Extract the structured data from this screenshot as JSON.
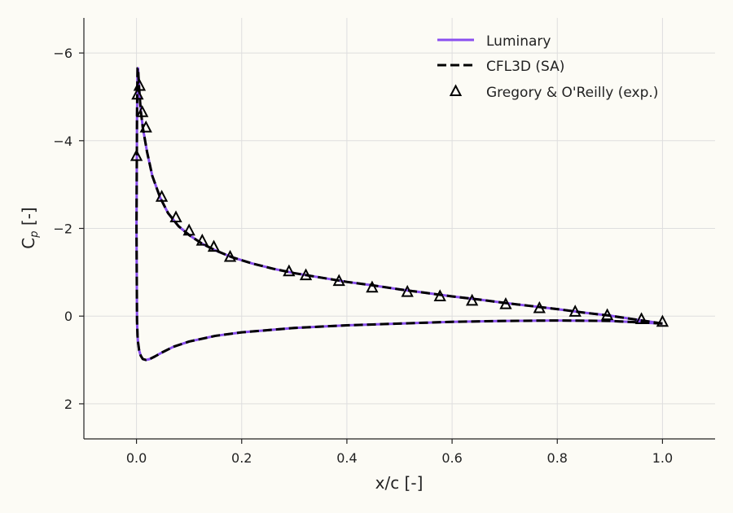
{
  "chart_data": {
    "type": "line",
    "xlabel": "x/c [-]",
    "ylabel": {
      "main": "C",
      "sub": "p",
      "suffix": " [-]"
    },
    "xlim": [
      -0.1,
      1.1
    ],
    "ylim": [
      2.8,
      -6.8
    ],
    "y_inverted": true,
    "xticks": [
      0.0,
      0.2,
      0.4,
      0.6,
      0.8,
      1.0
    ],
    "xtick_labels": [
      "0.0",
      "0.2",
      "0.4",
      "0.6",
      "0.8",
      "1.0"
    ],
    "yticks": [
      -6,
      -4,
      -2,
      0,
      2
    ],
    "ytick_labels": [
      "−6",
      "−4",
      "−2",
      "0",
      "2"
    ],
    "grid": true,
    "legend_position": "top-right",
    "series": [
      {
        "name": "Luminary",
        "style": "solid",
        "color": "#8a4fef",
        "upper": {
          "x": [
            0.0,
            0.001,
            0.002,
            0.003,
            0.005,
            0.008,
            0.012,
            0.02,
            0.03,
            0.045,
            0.06,
            0.08,
            0.1,
            0.125,
            0.15,
            0.18,
            0.22,
            0.26,
            0.3,
            0.35,
            0.4,
            0.45,
            0.5,
            0.55,
            0.6,
            0.65,
            0.7,
            0.75,
            0.8,
            0.85,
            0.9,
            0.95,
            1.0
          ],
          "y": [
            -2.0,
            -4.5,
            -5.6,
            -5.65,
            -5.2,
            -4.7,
            -4.3,
            -3.75,
            -3.2,
            -2.7,
            -2.35,
            -2.05,
            -1.85,
            -1.65,
            -1.5,
            -1.35,
            -1.2,
            -1.08,
            -0.98,
            -0.88,
            -0.78,
            -0.7,
            -0.61,
            -0.53,
            -0.45,
            -0.38,
            -0.3,
            -0.23,
            -0.16,
            -0.08,
            -0.01,
            0.08,
            0.17
          ]
        },
        "lower": {
          "x": [
            0.0,
            0.001,
            0.002,
            0.003,
            0.005,
            0.008,
            0.012,
            0.018,
            0.025,
            0.035,
            0.05,
            0.07,
            0.1,
            0.15,
            0.2,
            0.3,
            0.4,
            0.5,
            0.6,
            0.7,
            0.8,
            0.9,
            1.0
          ],
          "y": [
            -2.0,
            0.1,
            0.45,
            0.6,
            0.78,
            0.9,
            0.98,
            1.0,
            0.98,
            0.92,
            0.82,
            0.7,
            0.58,
            0.45,
            0.37,
            0.27,
            0.21,
            0.17,
            0.13,
            0.11,
            0.1,
            0.11,
            0.17
          ]
        }
      },
      {
        "name": "CFL3D (SA)",
        "style": "dashed",
        "color": "#000000",
        "upper": {
          "x": [
            0.0,
            0.001,
            0.002,
            0.003,
            0.005,
            0.008,
            0.012,
            0.02,
            0.03,
            0.045,
            0.06,
            0.08,
            0.1,
            0.125,
            0.15,
            0.18,
            0.22,
            0.26,
            0.3,
            0.35,
            0.4,
            0.45,
            0.5,
            0.55,
            0.6,
            0.65,
            0.7,
            0.75,
            0.8,
            0.85,
            0.9,
            0.95,
            1.0
          ],
          "y": [
            -2.0,
            -4.6,
            -5.65,
            -5.65,
            -5.2,
            -4.7,
            -4.3,
            -3.75,
            -3.2,
            -2.7,
            -2.35,
            -2.05,
            -1.85,
            -1.65,
            -1.5,
            -1.35,
            -1.2,
            -1.08,
            -0.98,
            -0.88,
            -0.78,
            -0.7,
            -0.61,
            -0.53,
            -0.45,
            -0.38,
            -0.3,
            -0.23,
            -0.16,
            -0.08,
            -0.01,
            0.08,
            0.17
          ]
        },
        "lower": {
          "x": [
            0.0,
            0.001,
            0.002,
            0.003,
            0.005,
            0.008,
            0.012,
            0.018,
            0.025,
            0.035,
            0.05,
            0.07,
            0.1,
            0.15,
            0.2,
            0.3,
            0.4,
            0.5,
            0.6,
            0.7,
            0.8,
            0.9,
            1.0
          ],
          "y": [
            -2.0,
            0.1,
            0.45,
            0.6,
            0.78,
            0.9,
            0.98,
            1.0,
            0.98,
            0.92,
            0.82,
            0.7,
            0.58,
            0.45,
            0.37,
            0.27,
            0.21,
            0.17,
            0.13,
            0.11,
            0.1,
            0.11,
            0.17
          ]
        }
      },
      {
        "name": "Gregory & O'Reilly (exp.)",
        "style": "markers",
        "marker": "triangle",
        "color": "#000000",
        "x": [
          0.0,
          0.002,
          0.006,
          0.011,
          0.018,
          0.048,
          0.075,
          0.1,
          0.125,
          0.147,
          0.178,
          0.29,
          0.322,
          0.385,
          0.448,
          0.515,
          0.577,
          0.638,
          0.702,
          0.766,
          0.834,
          0.895,
          0.96,
          1.0
        ],
        "y": [
          -3.65,
          -5.05,
          -5.25,
          -4.65,
          -4.3,
          -2.72,
          -2.25,
          -1.95,
          -1.72,
          -1.58,
          -1.35,
          -1.02,
          -0.93,
          -0.8,
          -0.65,
          -0.55,
          -0.45,
          -0.35,
          -0.27,
          -0.18,
          -0.1,
          -0.02,
          0.07,
          0.13
        ]
      }
    ]
  }
}
